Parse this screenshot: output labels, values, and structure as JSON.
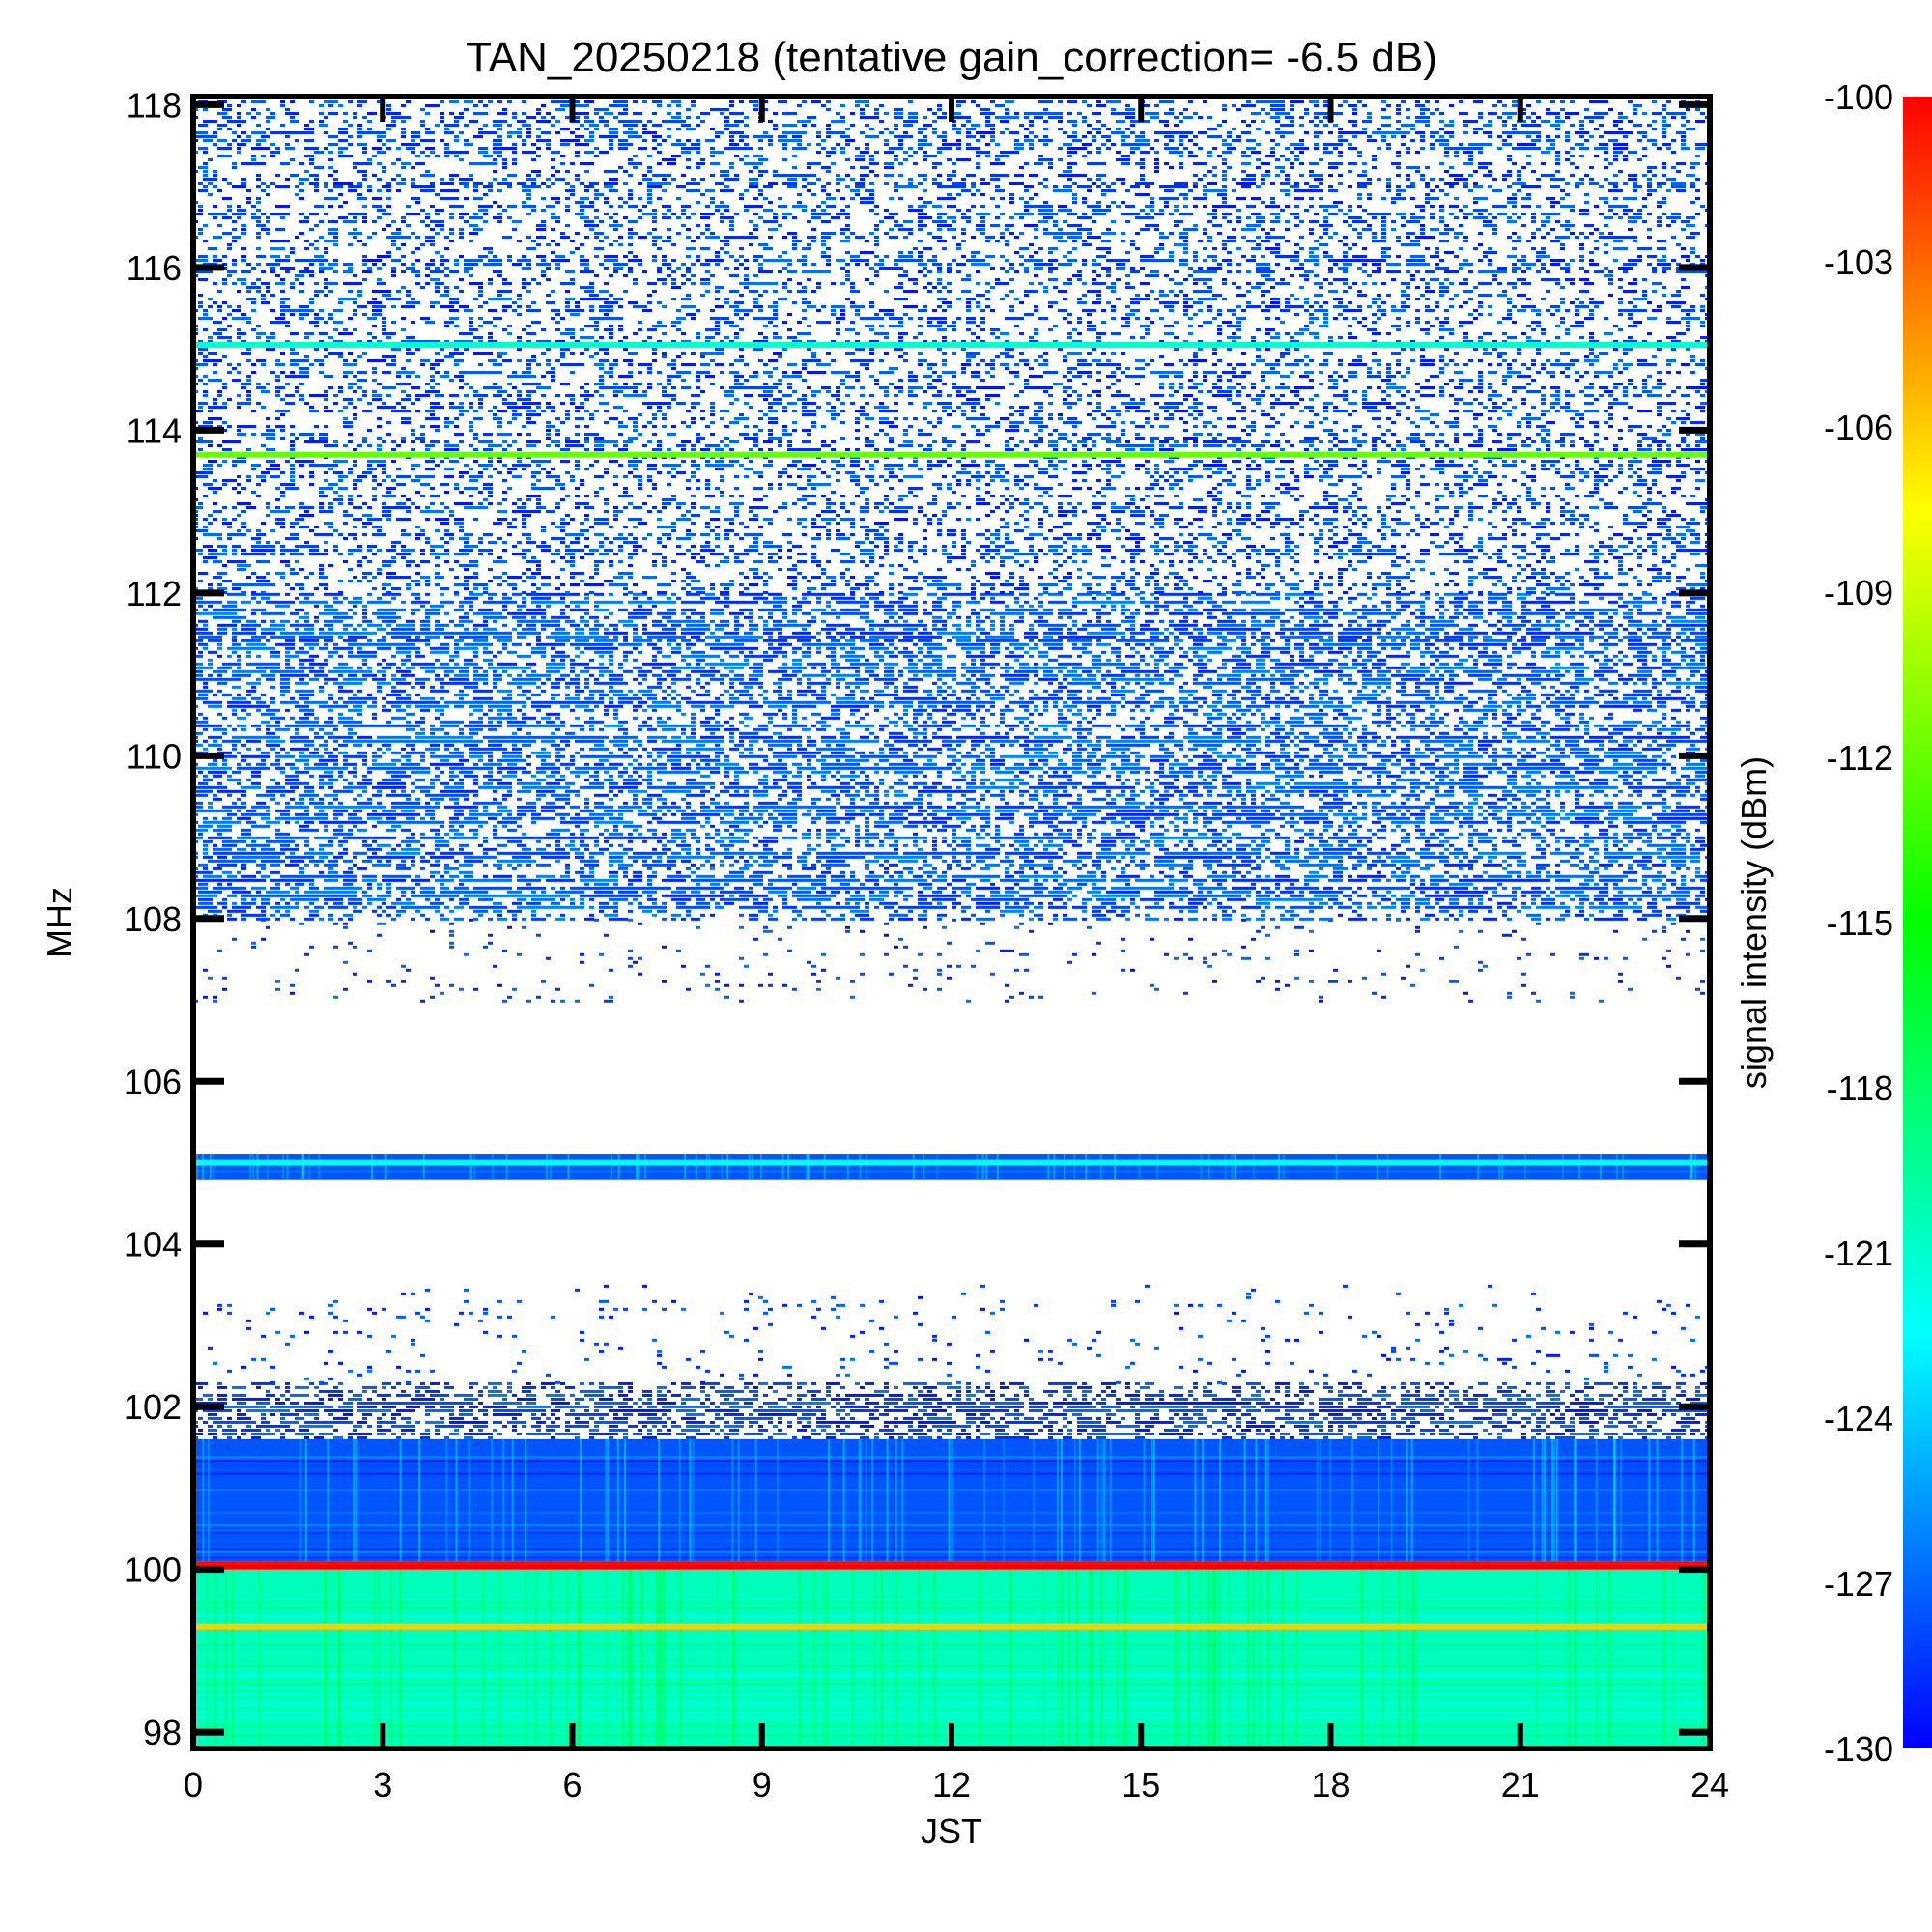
{
  "chart_data": {
    "type": "heatmap",
    "title": "TAN_20250218 (tentative gain_correction= -6.5 dB)",
    "xlabel": "JST",
    "ylabel": "MHz",
    "colorbar_label": "signal intensity (dBm)",
    "xlim": [
      0,
      24
    ],
    "ylim": [
      97.8,
      118.1
    ],
    "x_ticks": [
      "0",
      "3",
      "6",
      "9",
      "12",
      "15",
      "18",
      "21",
      "24"
    ],
    "y_ticks": [
      "98",
      "100",
      "102",
      "104",
      "106",
      "108",
      "110",
      "112",
      "114",
      "116",
      "118"
    ],
    "colorbar_range": [
      -130,
      -100
    ],
    "colorbar_ticks": [
      "-100",
      "-103",
      "-106",
      "-109",
      "-112",
      "-115",
      "-118",
      "-121",
      "-124",
      "-127",
      "-130"
    ],
    "colormap": [
      "#0000ff",
      "#00ffff",
      "#00ff00",
      "#ffff00",
      "#ff0000"
    ],
    "bands": [
      {
        "freq_min": 97.8,
        "freq_max": 100.0,
        "dbm": -120.5,
        "pattern": "continuous"
      },
      {
        "freq_min": 100.0,
        "freq_max": 100.1,
        "dbm": -100.0,
        "pattern": "continuous"
      },
      {
        "freq_min": 100.1,
        "freq_max": 101.6,
        "dbm": -127.5,
        "pattern": "continuous"
      },
      {
        "freq_min": 101.6,
        "freq_max": 102.3,
        "dbm": -129.5,
        "pattern": "dense"
      },
      {
        "freq_min": 102.3,
        "freq_max": 103.5,
        "dbm": -129.5,
        "pattern": "sparse"
      },
      {
        "freq_min": 104.8,
        "freq_max": 105.1,
        "dbm": -127.5,
        "pattern": "continuous"
      },
      {
        "freq_min": 107.0,
        "freq_max": 108.0,
        "dbm": -129.5,
        "pattern": "sparse"
      },
      {
        "freq_min": 108.0,
        "freq_max": 112.0,
        "dbm": -129.0,
        "pattern": "dense"
      },
      {
        "freq_min": 112.0,
        "freq_max": 118.1,
        "dbm": -129.5,
        "pattern": "medium"
      }
    ],
    "lines": [
      {
        "freq": 99.3,
        "dbm": -106.0
      },
      {
        "freq": 105.0,
        "dbm": -122.0
      },
      {
        "freq": 113.7,
        "dbm": -112.0
      },
      {
        "freq": 115.05,
        "dbm": -121.0
      }
    ]
  }
}
